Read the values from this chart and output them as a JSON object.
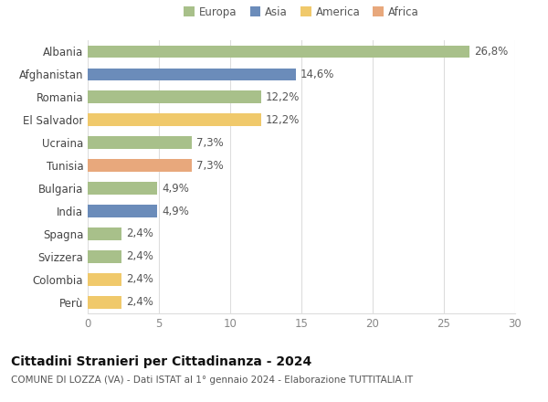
{
  "countries": [
    "Albania",
    "Afghanistan",
    "Romania",
    "El Salvador",
    "Ucraina",
    "Tunisia",
    "Bulgaria",
    "India",
    "Spagna",
    "Svizzera",
    "Colombia",
    "Perù"
  ],
  "values": [
    26.8,
    14.6,
    12.2,
    12.2,
    7.3,
    7.3,
    4.9,
    4.9,
    2.4,
    2.4,
    2.4,
    2.4
  ],
  "labels": [
    "26,8%",
    "14,6%",
    "12,2%",
    "12,2%",
    "7,3%",
    "7,3%",
    "4,9%",
    "4,9%",
    "2,4%",
    "2,4%",
    "2,4%",
    "2,4%"
  ],
  "continents": [
    "Europa",
    "Asia",
    "Europa",
    "America",
    "Europa",
    "Africa",
    "Europa",
    "Asia",
    "Europa",
    "Europa",
    "America",
    "America"
  ],
  "colors": {
    "Europa": "#a8c08a",
    "Asia": "#6b8cba",
    "America": "#f0c96b",
    "Africa": "#e8a87c"
  },
  "legend_order": [
    "Europa",
    "Asia",
    "America",
    "Africa"
  ],
  "xlim": [
    0,
    30
  ],
  "xticks": [
    0,
    5,
    10,
    15,
    20,
    25,
    30
  ],
  "title": "Cittadini Stranieri per Cittadinanza - 2024",
  "subtitle": "COMUNE DI LOZZA (VA) - Dati ISTAT al 1° gennaio 2024 - Elaborazione TUTTITALIA.IT",
  "background_color": "#ffffff",
  "grid_color": "#dddddd",
  "bar_height": 0.55,
  "label_fontsize": 8.5,
  "tick_fontsize": 8.5,
  "title_fontsize": 10,
  "subtitle_fontsize": 7.5
}
